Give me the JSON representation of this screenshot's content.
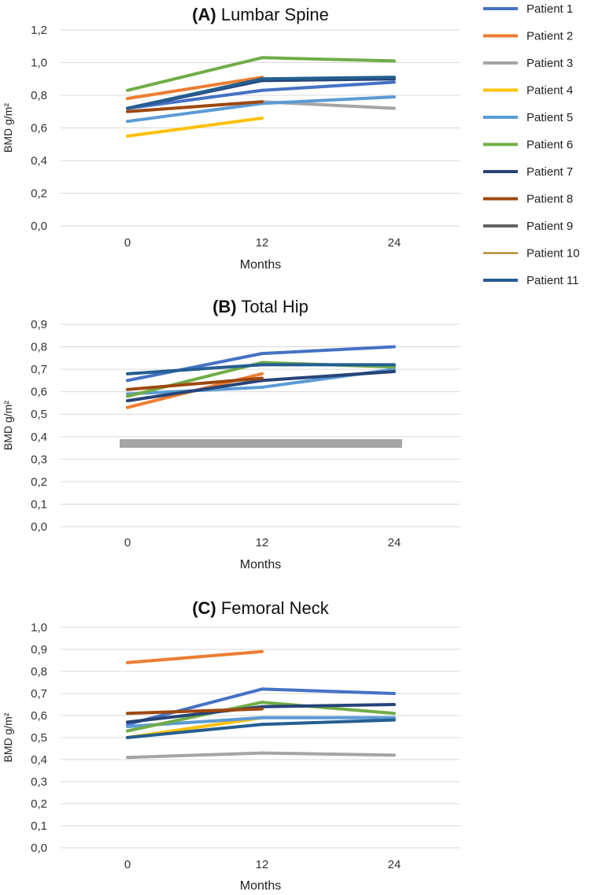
{
  "chart_data": [
    {
      "type": "line",
      "panel": "(A)",
      "title": "Lumbar Spine",
      "xlabel": "Months",
      "ylabel": "BMD g/m²",
      "categories": [
        "0",
        "12",
        "24"
      ],
      "yticks": [
        "0,0",
        "0,2",
        "0,4",
        "0,6",
        "0,8",
        "1,0",
        "1,2"
      ],
      "ylim": [
        0,
        1.2
      ],
      "grid": true,
      "series": [
        {
          "name": "Patient 1",
          "values": [
            0.72,
            0.83,
            0.88
          ]
        },
        {
          "name": "Patient 2",
          "values": [
            0.78,
            0.91,
            null
          ]
        },
        {
          "name": "Patient 3",
          "values": [
            null,
            0.76,
            0.72
          ]
        },
        {
          "name": "Patient 4",
          "values": [
            0.55,
            0.66,
            null
          ]
        },
        {
          "name": "Patient 5",
          "values": [
            0.64,
            0.75,
            0.79
          ]
        },
        {
          "name": "Patient 6",
          "values": [
            0.83,
            1.03,
            1.01
          ]
        },
        {
          "name": "Patient 7",
          "values": [
            0.72,
            0.89,
            0.9
          ]
        },
        {
          "name": "Patient 8",
          "values": [
            0.7,
            0.76,
            null
          ]
        },
        {
          "name": "Patient 9",
          "values": [
            null,
            null,
            null
          ]
        },
        {
          "name": "Patient 10",
          "values": [
            null,
            null,
            null
          ]
        },
        {
          "name": "Patient 11",
          "values": [
            0.72,
            0.9,
            0.91
          ]
        }
      ]
    },
    {
      "type": "line",
      "panel": "(B)",
      "title": "Total Hip",
      "xlabel": "Months",
      "ylabel": "BMD g/m²",
      "categories": [
        "0",
        "12",
        "24"
      ],
      "yticks": [
        "0,0",
        "0,1",
        "0,2",
        "0,3",
        "0,4",
        "0,5",
        "0,6",
        "0,7",
        "0,8",
        "0,9"
      ],
      "ylim": [
        0,
        0.9
      ],
      "grid": true,
      "series": [
        {
          "name": "Patient 1",
          "values": [
            0.65,
            0.77,
            0.8
          ]
        },
        {
          "name": "Patient 2",
          "values": [
            0.53,
            0.68,
            null
          ]
        },
        {
          "name": "Patient 3",
          "values": [
            0.37,
            0.37,
            0.37
          ]
        },
        {
          "name": "Patient 4",
          "values": [
            null,
            null,
            null
          ]
        },
        {
          "name": "Patient 5",
          "values": [
            0.59,
            0.62,
            0.7
          ]
        },
        {
          "name": "Patient 6",
          "values": [
            0.58,
            0.73,
            0.71
          ]
        },
        {
          "name": "Patient 7",
          "values": [
            0.56,
            0.65,
            0.69
          ]
        },
        {
          "name": "Patient 8",
          "values": [
            0.61,
            0.66,
            null
          ]
        },
        {
          "name": "Patient 9",
          "values": [
            null,
            null,
            null
          ]
        },
        {
          "name": "Patient 10",
          "values": [
            null,
            null,
            null
          ]
        },
        {
          "name": "Patient 11",
          "values": [
            0.68,
            0.72,
            0.72
          ]
        }
      ]
    },
    {
      "type": "line",
      "panel": "(C)",
      "title": "Femoral Neck",
      "xlabel": "Months",
      "ylabel": "BMD g/m²",
      "categories": [
        "0",
        "12",
        "24"
      ],
      "yticks": [
        "0,0",
        "0,1",
        "0,2",
        "0,3",
        "0,4",
        "0,5",
        "0,6",
        "0,7",
        "0,8",
        "0,9",
        "1,0"
      ],
      "ylim": [
        0,
        1.0
      ],
      "grid": true,
      "series": [
        {
          "name": "Patient 1",
          "values": [
            0.56,
            0.72,
            0.7
          ]
        },
        {
          "name": "Patient 2",
          "values": [
            0.84,
            0.89,
            null
          ]
        },
        {
          "name": "Patient 3",
          "values": [
            0.41,
            0.43,
            0.42
          ]
        },
        {
          "name": "Patient 4",
          "values": [
            0.5,
            0.59,
            null
          ]
        },
        {
          "name": "Patient 5",
          "values": [
            0.55,
            0.59,
            0.59
          ]
        },
        {
          "name": "Patient 6",
          "values": [
            0.53,
            0.66,
            0.61
          ]
        },
        {
          "name": "Patient 7",
          "values": [
            0.57,
            0.64,
            0.65
          ]
        },
        {
          "name": "Patient 8",
          "values": [
            0.61,
            0.63,
            null
          ]
        },
        {
          "name": "Patient 9",
          "values": [
            null,
            null,
            null
          ]
        },
        {
          "name": "Patient 10",
          "values": [
            null,
            null,
            null
          ]
        },
        {
          "name": "Patient 11",
          "values": [
            0.5,
            0.56,
            0.58
          ]
        }
      ]
    }
  ],
  "legend": {
    "placement": "right",
    "entries": [
      {
        "name": "Patient 1",
        "color": "#4472C4"
      },
      {
        "name": "Patient 2",
        "color": "#ED7D31"
      },
      {
        "name": "Patient 3",
        "color": "#A5A5A5"
      },
      {
        "name": "Patient 4",
        "color": "#FFC000"
      },
      {
        "name": "Patient 5",
        "color": "#5B9BD5"
      },
      {
        "name": "Patient 6",
        "color": "#70AD47"
      },
      {
        "name": "Patient 7",
        "color": "#264478"
      },
      {
        "name": "Patient 8",
        "color": "#9E480E"
      },
      {
        "name": "Patient 9",
        "color": "#636363"
      },
      {
        "name": "Patient 10",
        "color": "#997300"
      },
      {
        "name": "Patient 11",
        "color": "#255E91"
      }
    ]
  }
}
